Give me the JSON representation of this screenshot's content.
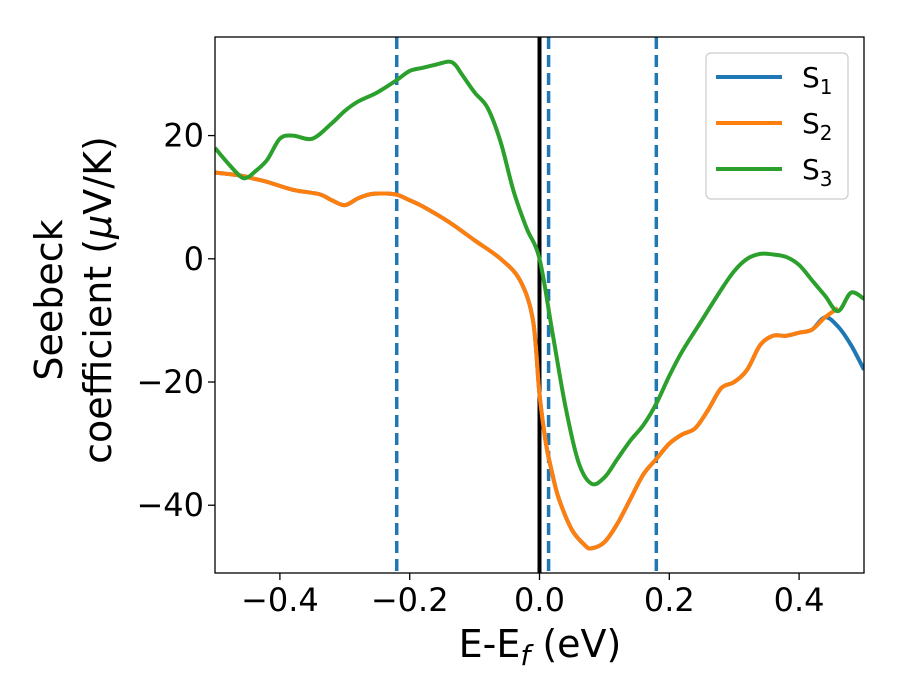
{
  "chart_data": {
    "type": "line",
    "title": "",
    "xlabel": {
      "main": "E-E",
      "sub": "f",
      "unit": " (eV)"
    },
    "ylabel": {
      "line1": "Seebeck",
      "line2_text": "coefficient  (",
      "line2_mu": "μ",
      "line2_unit": "V/K)"
    },
    "xlim": [
      -0.5,
      0.5
    ],
    "ylim": [
      -51,
      36
    ],
    "xticks": [
      {
        "value": -0.4,
        "label": "−0.4"
      },
      {
        "value": -0.2,
        "label": "−0.2"
      },
      {
        "value": 0.0,
        "label": "0.0"
      },
      {
        "value": 0.2,
        "label": "0.2"
      },
      {
        "value": 0.4,
        "label": "0.4"
      }
    ],
    "yticks": [
      {
        "value": -40,
        "label": "−40"
      },
      {
        "value": -20,
        "label": "−20"
      },
      {
        "value": 0,
        "label": "0"
      },
      {
        "value": 20,
        "label": "20"
      }
    ],
    "vlines": [
      {
        "x": -0.22,
        "style": "dashed",
        "color": "#1f77b4"
      },
      {
        "x": 0.0,
        "style": "solid",
        "color": "#000000"
      },
      {
        "x": 0.014,
        "style": "dashed",
        "color": "#1f77b4"
      },
      {
        "x": 0.18,
        "style": "dashed",
        "color": "#1f77b4"
      }
    ],
    "legend_position": "top-right",
    "series": [
      {
        "name": "S",
        "sub": "1",
        "color": "#1f77b4",
        "x": [
          -0.5,
          -0.46,
          -0.44,
          -0.42,
          -0.38,
          -0.34,
          -0.32,
          -0.3,
          -0.28,
          -0.26,
          -0.24,
          -0.22,
          -0.2,
          -0.18,
          -0.14,
          -0.1,
          -0.06,
          -0.03,
          -0.01,
          0.0,
          0.01,
          0.02,
          0.03,
          0.05,
          0.07,
          0.08,
          0.1,
          0.12,
          0.14,
          0.16,
          0.18,
          0.2,
          0.22,
          0.24,
          0.26,
          0.28,
          0.3,
          0.32,
          0.34,
          0.36,
          0.38,
          0.4,
          0.42,
          0.44,
          0.46,
          0.48,
          0.5
        ],
        "y": [
          14,
          13.5,
          13,
          12.5,
          11.2,
          10.5,
          9.5,
          8.7,
          9.8,
          10.5,
          10.6,
          10.4,
          9.5,
          8.5,
          6,
          3,
          0,
          -3.5,
          -10,
          -22,
          -30,
          -35,
          -39,
          -44,
          -46.5,
          -47,
          -46,
          -43,
          -39,
          -35,
          -32.5,
          -30,
          -28.5,
          -27.5,
          -24.5,
          -21,
          -20,
          -18,
          -14,
          -12.5,
          -12.5,
          -12,
          -11.5,
          -9.5,
          -11,
          -14,
          -18
        ]
      },
      {
        "name": "S",
        "sub": "2",
        "color": "#ff7f0e",
        "x": [
          -0.5,
          -0.46,
          -0.44,
          -0.42,
          -0.38,
          -0.34,
          -0.32,
          -0.3,
          -0.28,
          -0.26,
          -0.24,
          -0.22,
          -0.2,
          -0.18,
          -0.14,
          -0.1,
          -0.06,
          -0.03,
          -0.01,
          0.0,
          0.01,
          0.02,
          0.03,
          0.05,
          0.07,
          0.08,
          0.1,
          0.12,
          0.14,
          0.16,
          0.18,
          0.2,
          0.22,
          0.24,
          0.26,
          0.28,
          0.3,
          0.32,
          0.34,
          0.36,
          0.38,
          0.4,
          0.42,
          0.44,
          0.46
        ],
        "y": [
          14,
          13.5,
          13,
          12.5,
          11.2,
          10.5,
          9.5,
          8.7,
          9.8,
          10.5,
          10.6,
          10.4,
          9.5,
          8.5,
          6,
          3,
          0,
          -3.5,
          -10,
          -22,
          -30,
          -35,
          -39,
          -44,
          -46.5,
          -47,
          -46,
          -43,
          -39,
          -35,
          -32.5,
          -30,
          -28.5,
          -27.5,
          -24.5,
          -21,
          -20,
          -18,
          -14,
          -12.5,
          -12.5,
          -12,
          -11.5,
          -9.5,
          -8
        ]
      },
      {
        "name": "S",
        "sub": "3",
        "color": "#2ca02c",
        "x": [
          -0.5,
          -0.48,
          -0.46,
          -0.45,
          -0.44,
          -0.42,
          -0.4,
          -0.38,
          -0.35,
          -0.32,
          -0.3,
          -0.28,
          -0.25,
          -0.22,
          -0.2,
          -0.18,
          -0.16,
          -0.14,
          -0.13,
          -0.12,
          -0.1,
          -0.08,
          -0.06,
          -0.04,
          -0.02,
          0.0,
          0.02,
          0.04,
          0.06,
          0.08,
          0.1,
          0.12,
          0.14,
          0.16,
          0.18,
          0.2,
          0.22,
          0.25,
          0.28,
          0.3,
          0.32,
          0.34,
          0.36,
          0.38,
          0.4,
          0.42,
          0.44,
          0.46,
          0.48,
          0.5
        ],
        "y": [
          18,
          15.5,
          13.3,
          13.2,
          14,
          16,
          19.5,
          20,
          19.5,
          22,
          24,
          25.5,
          27,
          29,
          30.5,
          31,
          31.5,
          32,
          31.5,
          30,
          27,
          24.5,
          19,
          11,
          5,
          0,
          -12,
          -24,
          -33,
          -36.5,
          -35.5,
          -32.5,
          -29.5,
          -27,
          -23.5,
          -19,
          -15,
          -10,
          -5,
          -2,
          0,
          0.8,
          0.7,
          0.3,
          -1,
          -3.5,
          -6,
          -8.5,
          -5.5,
          -6.5
        ]
      }
    ]
  }
}
